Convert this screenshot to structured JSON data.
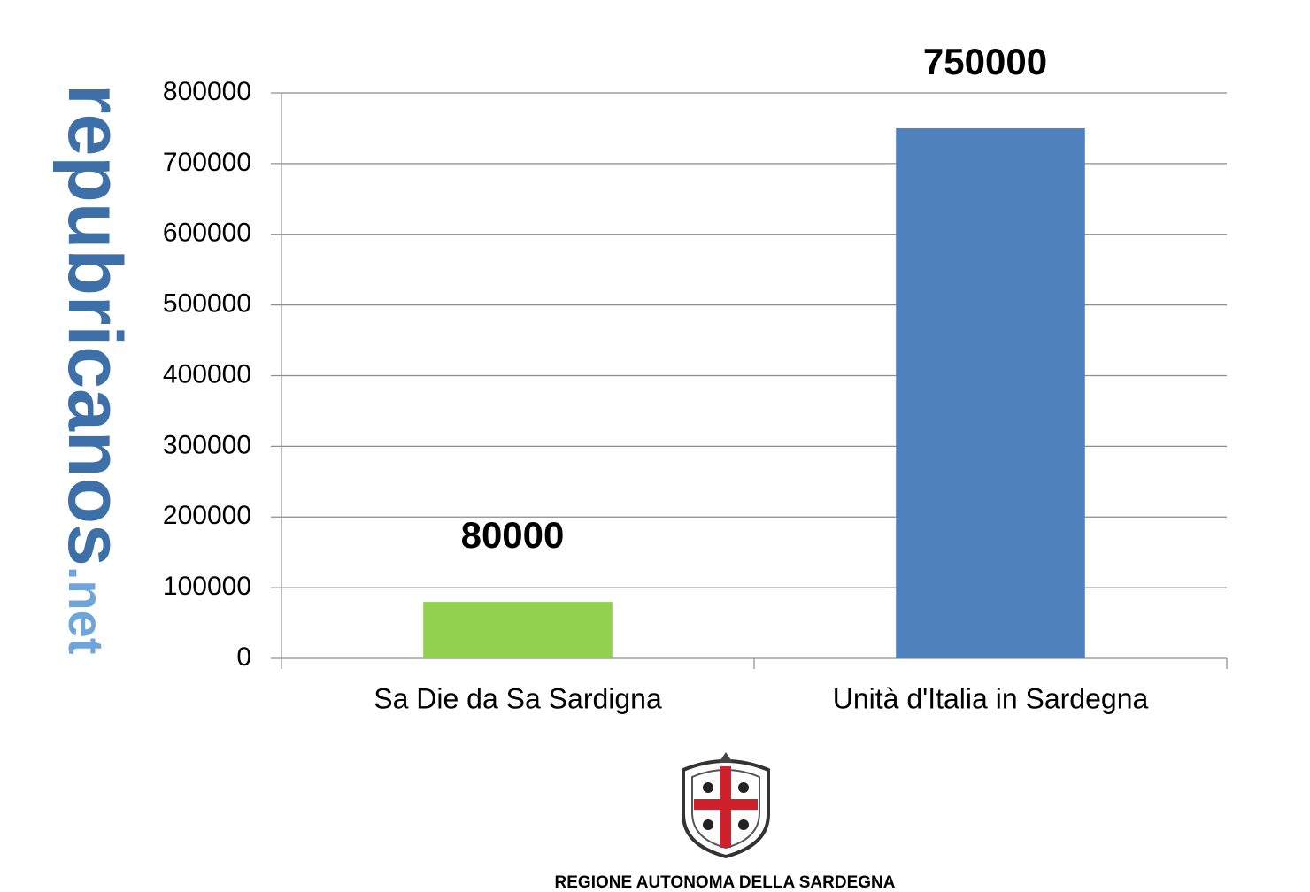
{
  "chart_data": {
    "type": "bar",
    "categories": [
      "Sa Die da Sa Sardigna",
      "Unità d'Italia in Sardegna"
    ],
    "values": [
      80000,
      750000
    ],
    "colors": [
      "#92d050",
      "#4f81bd"
    ],
    "ylim": [
      0,
      800000
    ],
    "yticks": [
      0,
      100000,
      200000,
      300000,
      400000,
      500000,
      600000,
      700000,
      800000
    ],
    "grid": true
  },
  "watermark": {
    "name": "repubricanos",
    "domain": ".net"
  },
  "footer": "REGIONE AUTONOMA DELLA SARDEGNA"
}
